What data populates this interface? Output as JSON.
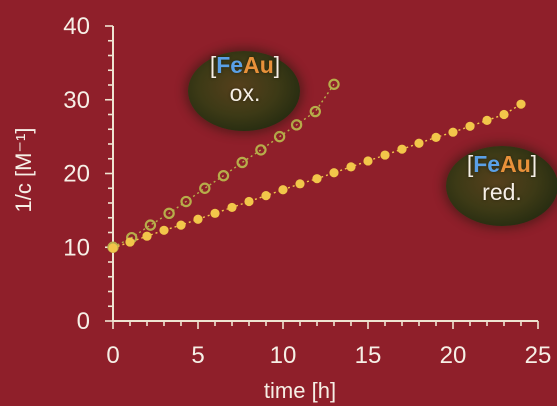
{
  "chart_data": {
    "type": "scatter",
    "xlabel": "time [h]",
    "ylabel": "1/c [M⁻¹]",
    "xlim": [
      0,
      25
    ],
    "ylim": [
      0,
      40
    ],
    "x_ticks": [
      "0",
      "5",
      "10",
      "15",
      "20",
      "25"
    ],
    "y_ticks": [
      "0",
      "10",
      "20",
      "30",
      "40"
    ],
    "grid": false,
    "colors": {
      "background": "#8f1f2a",
      "axes": "#efe4d2",
      "oxidized": "#b7ad4a",
      "reduced": "#f2c64a"
    },
    "series": [
      {
        "name": "[FeAu] ox.",
        "marker": "open-circle",
        "x": [
          0,
          1.1,
          2.2,
          3.3,
          4.3,
          5.4,
          6.5,
          7.6,
          8.7,
          9.8,
          10.8,
          11.9,
          13.0
        ],
        "y": [
          10.0,
          11.3,
          13.0,
          14.6,
          16.2,
          18.0,
          19.7,
          21.5,
          23.2,
          25.0,
          26.6,
          28.4,
          32.1
        ]
      },
      {
        "name": "[FeAu] red.",
        "marker": "filled-circle",
        "x": [
          0,
          1,
          2,
          3,
          4,
          5,
          6,
          7,
          8,
          9,
          10,
          11,
          12,
          13,
          14,
          15,
          16,
          17,
          18,
          19,
          20,
          21,
          22,
          23,
          24
        ],
        "y": [
          9.9,
          10.7,
          11.5,
          12.3,
          13.0,
          13.8,
          14.6,
          15.4,
          16.2,
          17.0,
          17.8,
          18.6,
          19.3,
          20.1,
          20.9,
          21.7,
          22.5,
          23.3,
          24.1,
          24.9,
          25.6,
          26.4,
          27.2,
          28.0,
          29.4
        ]
      }
    ],
    "labels": {
      "ox": {
        "prefix": "[",
        "fe": "Fe",
        "au": "Au",
        "suffix": "]",
        "state": "ox."
      },
      "red": {
        "prefix": "[",
        "fe": "Fe",
        "au": "Au",
        "suffix": "]",
        "state": "red."
      }
    }
  }
}
